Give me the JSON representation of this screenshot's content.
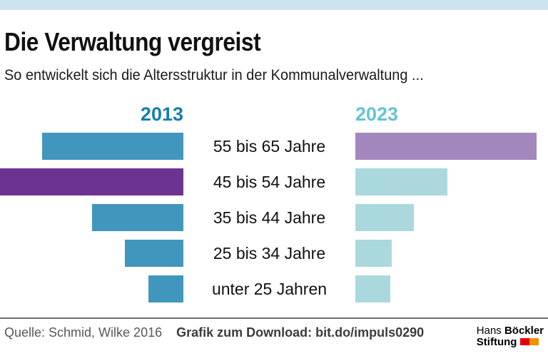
{
  "page": {
    "background": "#ffffff",
    "top_strip_color": "#cde4ef"
  },
  "header": {
    "title": "Die Verwaltung vergreist",
    "subtitle": "So entwickelt sich die Altersstruktur in der Kommunalverwaltung ..."
  },
  "chart_data": {
    "type": "bar",
    "subtype": "back-to-back horizontal comparison",
    "title": "Die Verwaltung vergreist",
    "subtitle": "So entwickelt sich die Altersstruktur in der Kommunalverwaltung ...",
    "categories": [
      "55 bis 65 Jahre",
      "45 bis 54 Jahre",
      "35 bis 44 Jahre",
      "25 bis 34 Jahre",
      "unter 25 Jahren"
    ],
    "value_note": "no numeric axis or data labels shown; values estimated from bar lengths as percent of the longest bar (2013, 45 bis 54 Jahre = 100)",
    "series": [
      {
        "name": "2013",
        "header_color": "#127fb1",
        "direction": "right-to-left",
        "values": [
          77,
          100,
          50,
          32,
          19
        ],
        "bar_colors": [
          "#4196be",
          "#6c3390",
          "#4196be",
          "#4196be",
          "#4196be"
        ]
      },
      {
        "name": "2023",
        "header_color": "#66c4d1",
        "direction": "left-to-right",
        "values": [
          99,
          50,
          32,
          20,
          19
        ],
        "bar_colors": [
          "#a287bd",
          "#abd8dd",
          "#abd8dd",
          "#abd8dd",
          "#abd8dd"
        ]
      }
    ],
    "highlight_note": "2013 '45 bis 54 Jahre' bar is dark purple and 2023 '55 bis 65 Jahre' bar is light purple, marking the same ageing cohort",
    "grid": false,
    "legend_position": "year headers above each bar column"
  },
  "footer": {
    "source": "Quelle: Schmid, Wilke 2016",
    "download": "Grafik zum Download: bit.do/impuls0290",
    "logo": {
      "line1_regular": "Hans ",
      "line1_bold": "Böckler",
      "line2_bold": "Stiftung",
      "mark_colors": [
        "#e3000f",
        "#f39200"
      ]
    }
  }
}
